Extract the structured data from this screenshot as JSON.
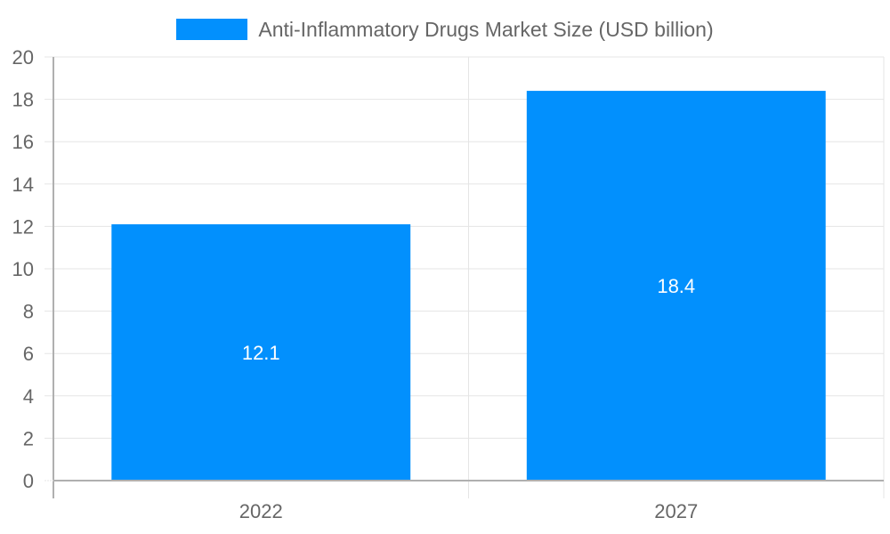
{
  "chart_data": {
    "type": "bar",
    "title": "",
    "legend": [
      {
        "label": "Anti-Inflammatory Drugs Market Size (USD billion)",
        "color": "#0290fd"
      }
    ],
    "legend_position": "top",
    "categories": [
      "2022",
      "2027"
    ],
    "series": [
      {
        "name": "Anti-Inflammatory Drugs Market Size (USD billion)",
        "values": [
          12.1,
          18.4
        ]
      }
    ],
    "data_labels": [
      "12.1",
      "18.4"
    ],
    "xlabel": "",
    "ylabel": "",
    "ylim": [
      0,
      20
    ],
    "yticks": [
      0,
      2,
      4,
      6,
      8,
      10,
      12,
      14,
      16,
      18,
      20
    ],
    "grid": true
  },
  "colors": {
    "bar": "#0290fd",
    "grid": "#e5e5e5",
    "axis": "#b0b0b0",
    "text": "#666666"
  }
}
